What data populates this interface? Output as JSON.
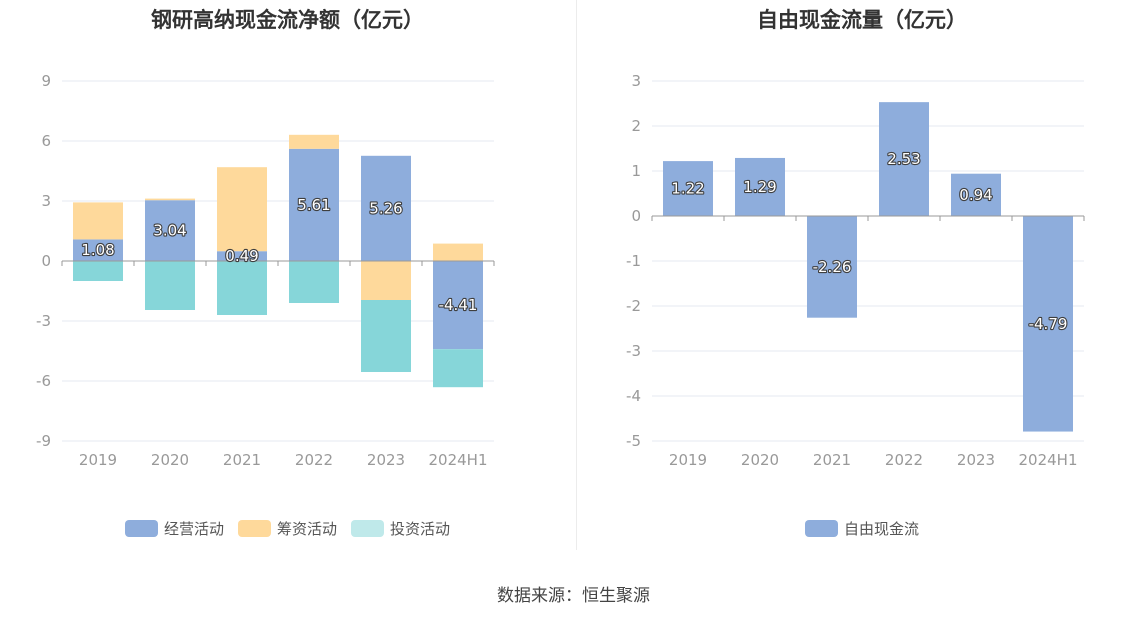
{
  "colors": {
    "operating": "#8eaddc",
    "financing": "#fed99b",
    "investing": "#86d6d9",
    "fcf": "#8eaddc"
  },
  "source_text": "数据来源：恒生聚源",
  "chart_data": [
    {
      "type": "bar",
      "stacked": true,
      "title": "钢研高纳现金流净额（亿元）",
      "categories": [
        "2019",
        "2020",
        "2021",
        "2022",
        "2023",
        "2024H1"
      ],
      "ylim": [
        -9,
        9
      ],
      "yticks": [
        "9",
        "6",
        "3",
        "0",
        "-3",
        "-6",
        "-9"
      ],
      "grid": true,
      "legend_position": "bottom",
      "series": [
        {
          "name": "经营活动",
          "color_key": "operating",
          "values": [
            1.08,
            3.04,
            0.49,
            5.61,
            5.26,
            -4.41
          ],
          "labels": [
            "1.08",
            "3.04",
            "0.49",
            "5.61",
            "5.26",
            "-4.41"
          ]
        },
        {
          "name": "筹资活动",
          "color_key": "financing",
          "values": [
            1.85,
            0.08,
            4.2,
            0.7,
            -1.95,
            0.87
          ]
        },
        {
          "name": "投资活动",
          "color_key": "investing",
          "values": [
            -1.0,
            -2.45,
            -2.7,
            -2.1,
            -3.6,
            -1.9
          ]
        }
      ]
    },
    {
      "type": "bar",
      "title": "自由现金流量（亿元）",
      "categories": [
        "2019",
        "2020",
        "2021",
        "2022",
        "2023",
        "2024H1"
      ],
      "ylim": [
        -5,
        3
      ],
      "yticks": [
        "3",
        "2",
        "1",
        "0",
        "-1",
        "-2",
        "-3",
        "-4",
        "-5"
      ],
      "grid": true,
      "legend_position": "bottom",
      "series": [
        {
          "name": "自由现金流",
          "color_key": "fcf",
          "values": [
            1.22,
            1.29,
            -2.26,
            2.53,
            0.94,
            -4.79
          ],
          "labels": [
            "1.22",
            "1.29",
            "-2.26",
            "2.53",
            "0.94",
            "-4.79"
          ]
        }
      ]
    }
  ]
}
